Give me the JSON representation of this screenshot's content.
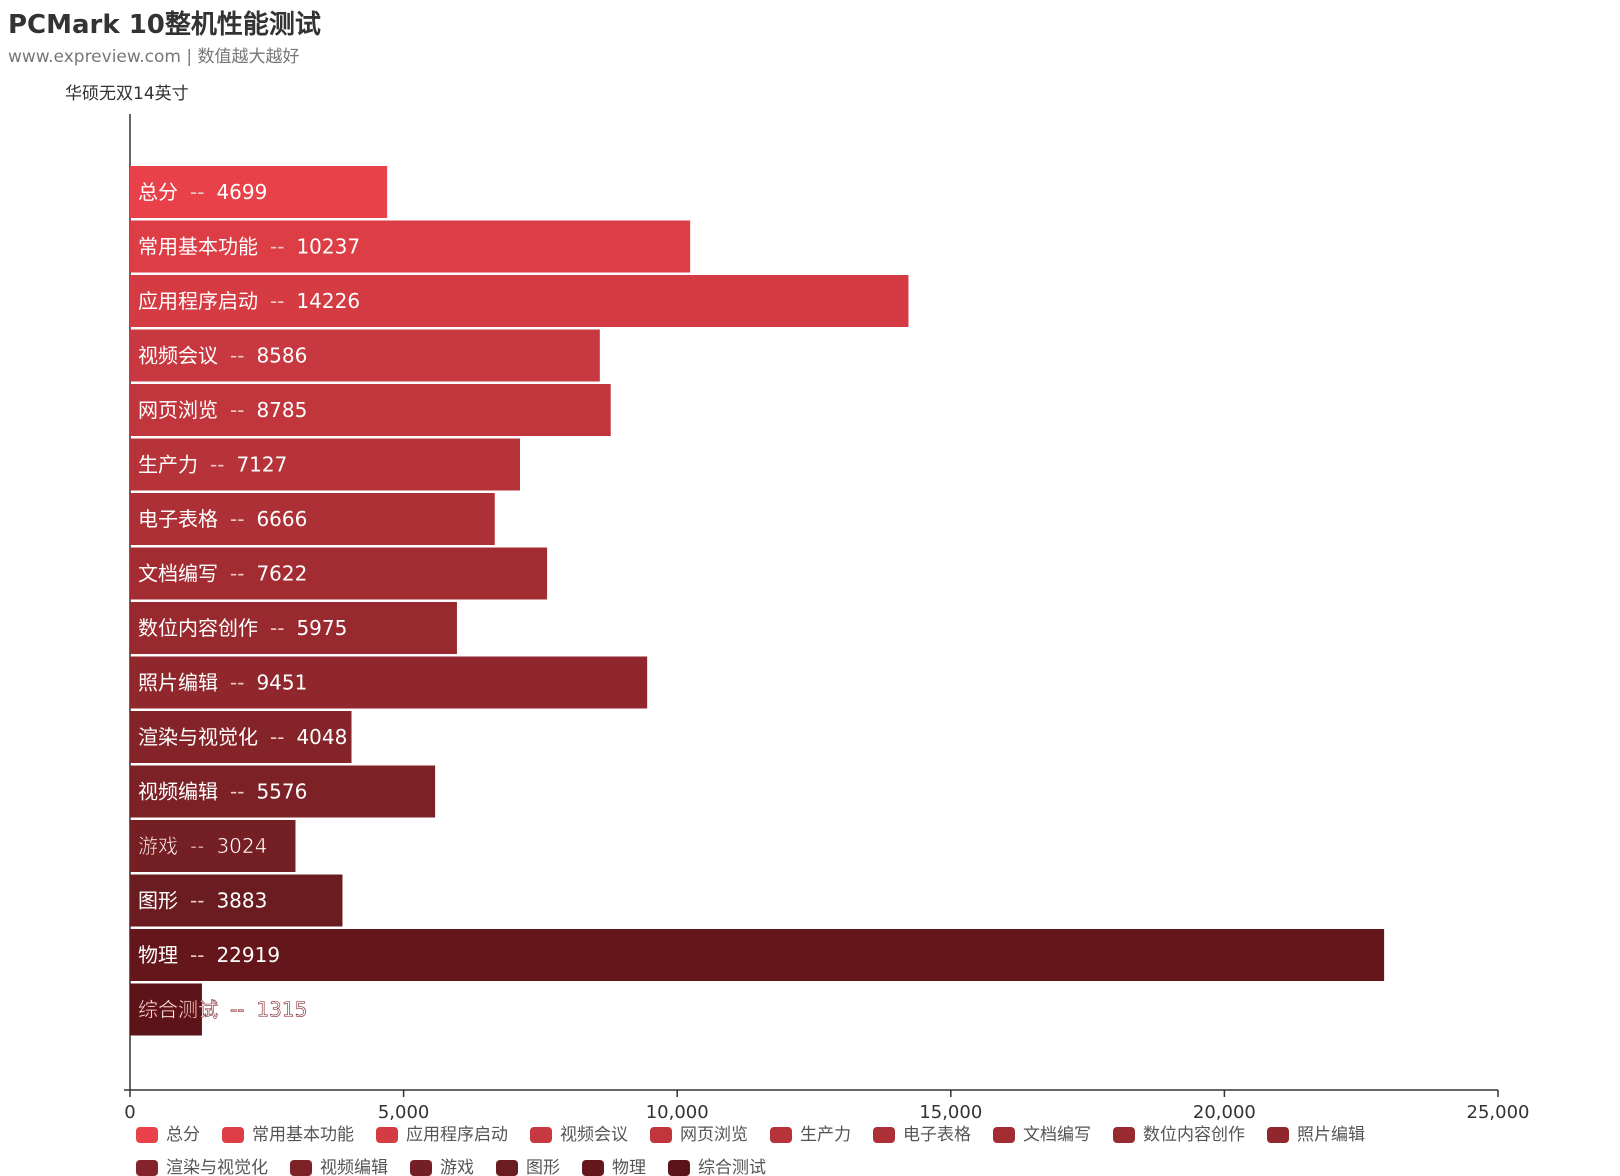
{
  "header": {
    "title": "PCMark 10整机性能测试",
    "subtitle": "www.expreview.com | 数值越大越好"
  },
  "chart_data": {
    "type": "bar",
    "orientation": "horizontal",
    "title": "PCMark 10整机性能测试",
    "subtitle": "www.expreview.com | 数值越大越好",
    "series_caption": "华硕无双14英寸",
    "categories": [
      "总分",
      "常用基本功能",
      "应用程序启动",
      "视频会议",
      "网页浏览",
      "生产力",
      "电子表格",
      "文档编写",
      "数位内容创作",
      "照片编辑",
      "渲染与视觉化",
      "视频编辑",
      "游戏",
      "图形",
      "物理",
      "综合测试"
    ],
    "values": [
      4699,
      10237,
      14226,
      8586,
      8785,
      7127,
      6666,
      7622,
      5975,
      9451,
      4048,
      5576,
      3024,
      3883,
      22919,
      1315
    ],
    "label_separator": "--",
    "xlim": [
      0,
      25000
    ],
    "x_ticks": [
      0,
      5000,
      10000,
      15000,
      20000,
      25000
    ],
    "x_tick_labels": [
      "0",
      "5,000",
      "10,000",
      "15,000",
      "20,000",
      "25,000"
    ],
    "colors": [
      "#e8414a",
      "#dd3d45",
      "#d43b43",
      "#c83840",
      "#c1363d",
      "#b7333a",
      "#ad3036",
      "#a22c32",
      "#982a2f",
      "#8f272c",
      "#842428",
      "#7c2126",
      "#741f23",
      "#6b1c20",
      "#64161a",
      "#5c1418"
    ],
    "legend_position": "bottom",
    "grid": false
  }
}
